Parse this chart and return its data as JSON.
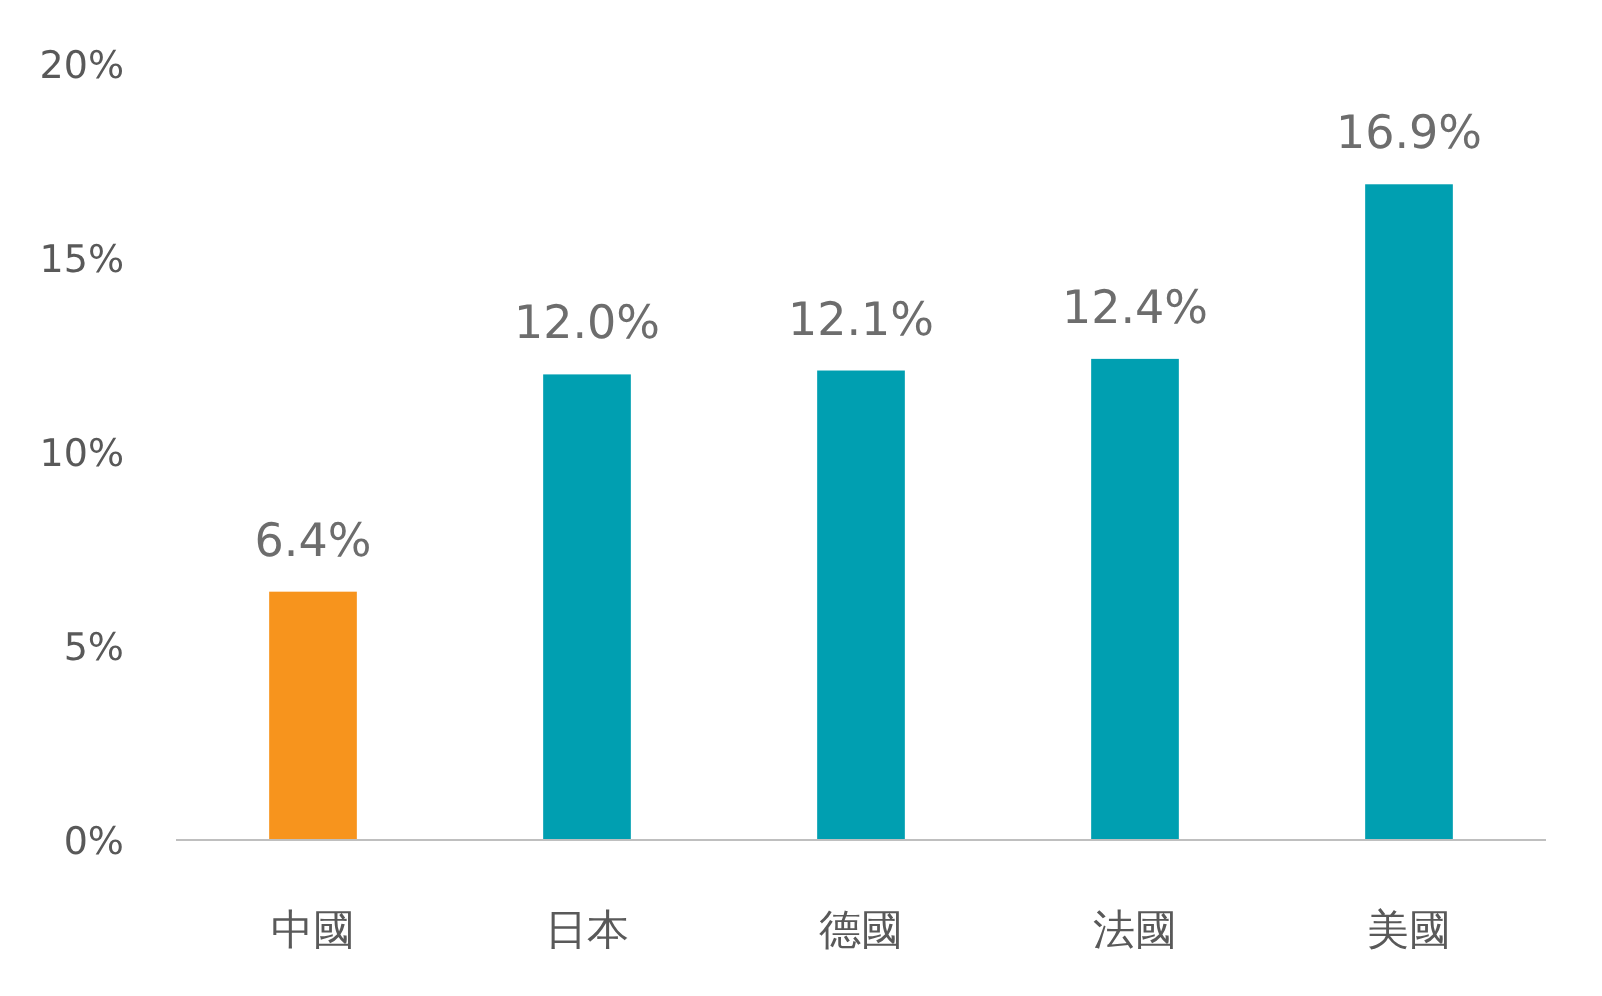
{
  "chart_data": {
    "type": "bar",
    "categories": [
      "中國",
      "日本",
      "德國",
      "法國",
      "美國"
    ],
    "values": [
      6.4,
      12.0,
      12.1,
      12.4,
      16.9
    ],
    "colors": [
      "#f7941d",
      "#009fb1",
      "#009fb1",
      "#009fb1",
      "#009fb1"
    ],
    "value_labels": [
      "6.4%",
      "12.0%",
      "12.1%",
      "12.4%",
      "16.9%"
    ],
    "ylim": [
      0,
      20
    ],
    "yticks": [
      {
        "value": 0,
        "label": "0%"
      },
      {
        "value": 5,
        "label": "5%"
      },
      {
        "value": 10,
        "label": "10%"
      },
      {
        "value": 15,
        "label": "15%"
      },
      {
        "value": 20,
        "label": "20%"
      }
    ],
    "grid": false
  }
}
